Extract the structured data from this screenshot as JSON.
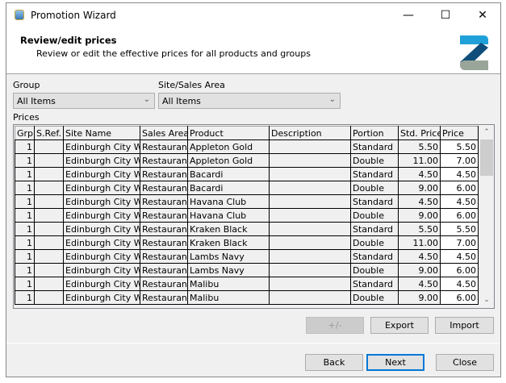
{
  "window": {
    "title": "Promotion Wizard",
    "minimize": "—",
    "maximize": "☐",
    "close": "✕"
  },
  "header": {
    "title": "Review/edit prices",
    "subtitle": "Review or edit the effective prices for all products and groups",
    "logo_colors": [
      "#1fa0d8",
      "#0f4e7a",
      "#9aa59a"
    ]
  },
  "filters": {
    "group_label": "Group",
    "group_value": "All Items",
    "site_label": "Site/Sales Area",
    "site_value": "All Items"
  },
  "prices": {
    "label": "Prices",
    "columns": [
      "Grp",
      "S.Ref.",
      "Site Name",
      "Sales Area",
      "Product",
      "Description",
      "Portion",
      "Std. Price",
      "Price"
    ],
    "rows": [
      [
        "1",
        "",
        "Edinburgh City West",
        "Restaurant",
        "Appleton Gold",
        "",
        "Standard",
        "5.50",
        "5.50"
      ],
      [
        "1",
        "",
        "Edinburgh City West",
        "Restaurant",
        "Appleton Gold",
        "",
        "Double",
        "11.00",
        "7.00"
      ],
      [
        "1",
        "",
        "Edinburgh City West",
        "Restaurant",
        "Bacardi",
        "",
        "Standard",
        "4.50",
        "4.50"
      ],
      [
        "1",
        "",
        "Edinburgh City West",
        "Restaurant",
        "Bacardi",
        "",
        "Double",
        "9.00",
        "6.00"
      ],
      [
        "1",
        "",
        "Edinburgh City West",
        "Restaurant",
        "Havana Club",
        "",
        "Standard",
        "4.50",
        "4.50"
      ],
      [
        "1",
        "",
        "Edinburgh City West",
        "Restaurant",
        "Havana Club",
        "",
        "Double",
        "9.00",
        "6.00"
      ],
      [
        "1",
        "",
        "Edinburgh City West",
        "Restaurant",
        "Kraken Black",
        "",
        "Standard",
        "5.50",
        "5.50"
      ],
      [
        "1",
        "",
        "Edinburgh City West",
        "Restaurant",
        "Kraken Black",
        "",
        "Double",
        "11.00",
        "7.00"
      ],
      [
        "1",
        "",
        "Edinburgh City West",
        "Restaurant",
        "Lambs Navy",
        "",
        "Standard",
        "4.50",
        "4.50"
      ],
      [
        "1",
        "",
        "Edinburgh City West",
        "Restaurant",
        "Lambs Navy",
        "",
        "Double",
        "9.00",
        "6.00"
      ],
      [
        "1",
        "",
        "Edinburgh City West",
        "Restaurant",
        "Malibu",
        "",
        "Standard",
        "4.50",
        "4.50"
      ],
      [
        "1",
        "",
        "Edinburgh City West",
        "Restaurant",
        "Malibu",
        "",
        "Double",
        "9.00",
        "6.00"
      ]
    ]
  },
  "buttons": {
    "plusminus": "+/-",
    "export": "Export",
    "import": "Import",
    "back": "Back",
    "next": "Next",
    "close": "Close"
  }
}
